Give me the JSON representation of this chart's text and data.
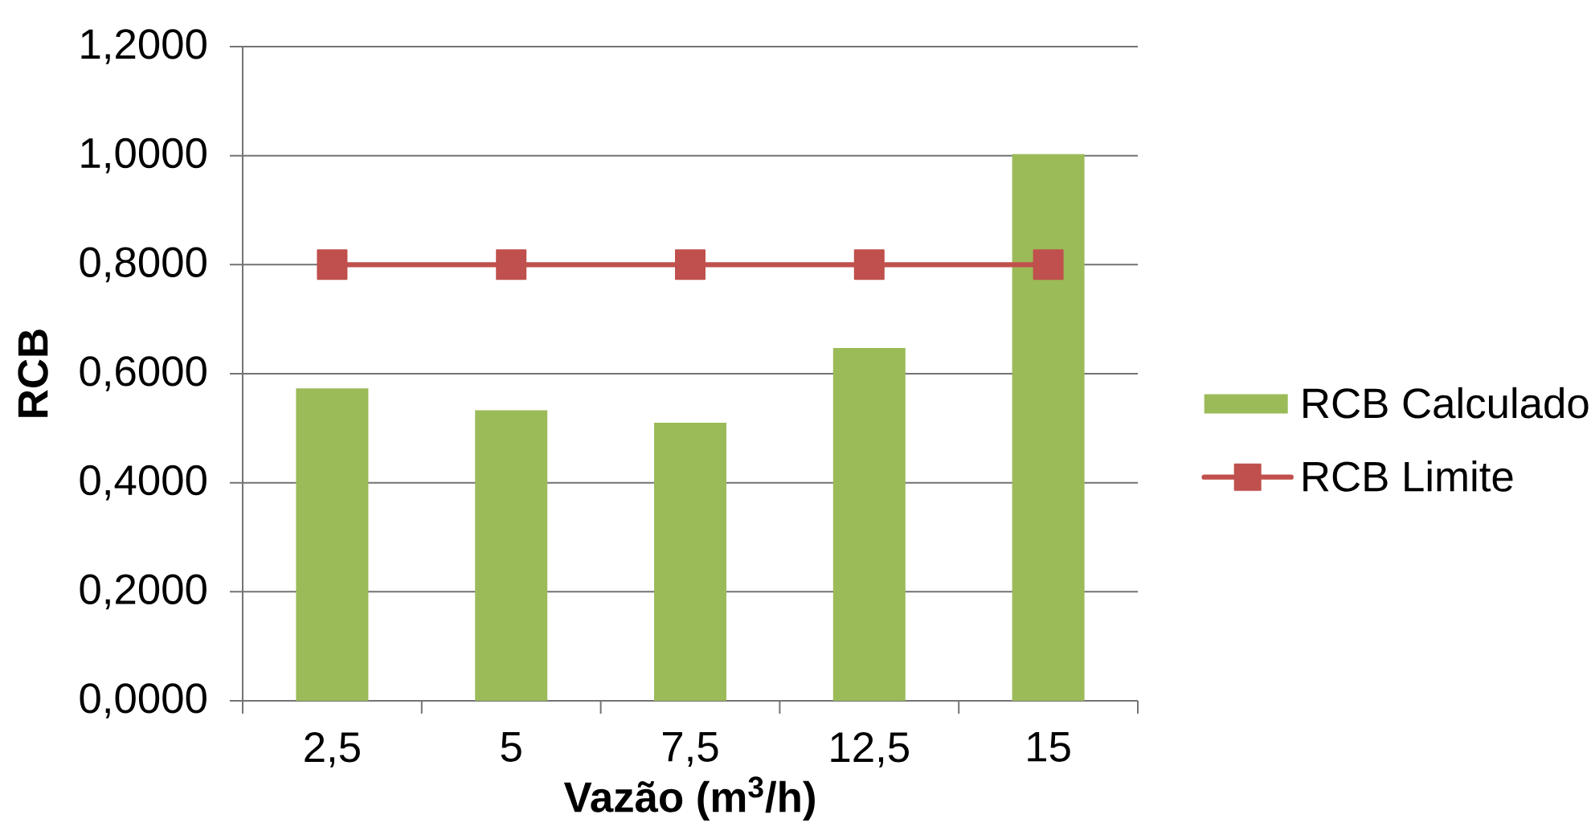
{
  "chart_data": {
    "type": "bar",
    "xlabel": "Vazão (m$^{3}$/h)",
    "ylabel": "RCB",
    "categories": [
      "2,5",
      "5",
      "7,5",
      "12,5",
      "15"
    ],
    "series": [
      {
        "name": "RCB Calculado",
        "color": "#9bbb59",
        "values": [
          0.573,
          0.533,
          0.51,
          0.647,
          1.003
        ]
      },
      {
        "name": "RCB Limite",
        "type": "line",
        "color": "#c0504d",
        "marker": "square",
        "values": [
          0.8,
          0.8,
          0.8,
          0.8,
          0.8
        ]
      }
    ],
    "ylim": [
      0,
      1.2
    ],
    "yticks": [
      {
        "value": 0,
        "label": "0,0000"
      },
      {
        "value": 0.2,
        "label": "0,2000"
      },
      {
        "value": 0.4,
        "label": "0,4000"
      },
      {
        "value": 0.6,
        "label": "0,6000"
      },
      {
        "value": 0.8,
        "label": "0,8000"
      },
      {
        "value": 1.0,
        "label": "1,0000"
      },
      {
        "value": 1.2,
        "label": "1,2000"
      }
    ],
    "grid": "y",
    "legend": "right"
  }
}
